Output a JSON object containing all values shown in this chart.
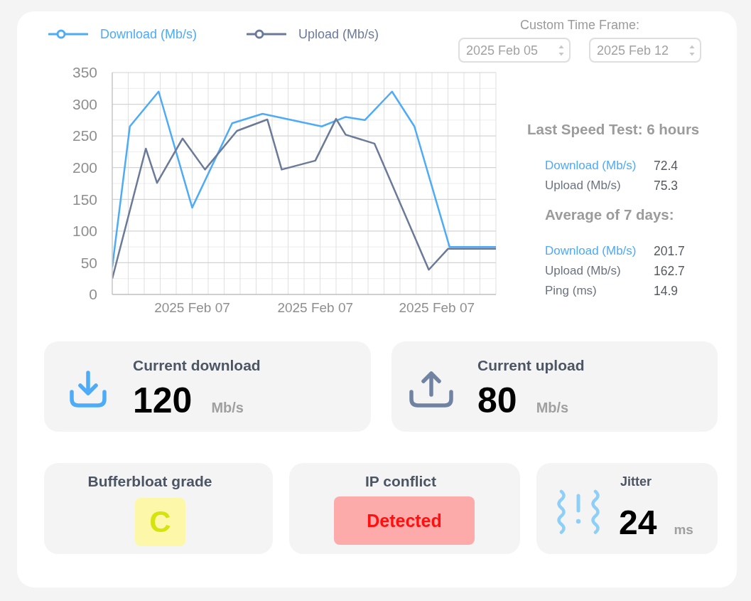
{
  "chart_data": [
    {
      "type": "line",
      "series": [
        {
          "name": "Download (Mb/s)",
          "color": "#4dabf7",
          "x": [
            "2025-02-07T00:00",
            "2025-02-07T01:06",
            "2025-02-07T02:54",
            "2025-02-07T05:00",
            "2025-02-07T07:30",
            "2025-02-07T09:24",
            "2025-02-07T13:06",
            "2025-02-07T14:36",
            "2025-02-07T15:48",
            "2025-02-07T17:30",
            "2025-02-07T18:54",
            "2025-02-07T21:06",
            "2025-02-08T00:00"
          ],
          "values": [
            43,
            265,
            320,
            137,
            270,
            285,
            265,
            280,
            275,
            320,
            265,
            75,
            75
          ]
        },
        {
          "name": "Upload (Mb/s)",
          "color": "#6b7a99",
          "x": [
            "2025-02-07T00:00",
            "2025-02-07T02:06",
            "2025-02-07T02:48",
            "2025-02-07T04:24",
            "2025-02-07T05:48",
            "2025-02-07T07:48",
            "2025-02-07T09:42",
            "2025-02-07T10:36",
            "2025-02-07T12:42",
            "2025-02-07T14:00",
            "2025-02-07T14:36",
            "2025-02-07T16:24",
            "2025-02-07T19:48",
            "2025-02-07T21:00",
            "2025-02-08T00:00"
          ],
          "values": [
            25,
            230,
            176,
            246,
            197,
            258,
            276,
            197,
            211,
            277,
            252,
            238,
            39,
            72,
            72
          ]
        }
      ],
      "xlim": [
        "2025-02-07T00:00",
        "2025-02-08T00:00"
      ],
      "xticks": [
        {
          "value": "2025-02-07T00:00",
          "label": null
        },
        {
          "value": "2025-02-07T01:00",
          "label": null
        },
        {
          "value": "2025-02-07T02:00",
          "label": null
        },
        {
          "value": "2025-02-07T03:00",
          "label": null
        },
        {
          "value": "2025-02-07T04:00",
          "label": null
        },
        {
          "value": "2025-02-07T05:00",
          "label": null
        },
        {
          "value": "2025-02-07T05:00",
          "label": "2025 Feb 07"
        },
        {
          "value": "2025-02-07T06:00",
          "label": null
        },
        {
          "value": "2025-02-07T07:00",
          "label": null
        },
        {
          "value": "2025-02-07T08:00",
          "label": null
        },
        {
          "value": "2025-02-07T09:00",
          "label": null
        },
        {
          "value": "2025-02-07T10:00",
          "label": null
        },
        {
          "value": "2025-02-07T11:00",
          "label": null
        },
        {
          "value": "2025-02-07T12:00",
          "label": null
        },
        {
          "value": "2025-02-07T12:42",
          "label": "2025 Feb 07"
        },
        {
          "value": "2025-02-07T13:00",
          "label": null
        },
        {
          "value": "2025-02-07T14:00",
          "label": null
        },
        {
          "value": "2025-02-07T15:00",
          "label": null
        },
        {
          "value": "2025-02-07T16:00",
          "label": null
        },
        {
          "value": "2025-02-07T17:00",
          "label": null
        },
        {
          "value": "2025-02-07T18:00",
          "label": null
        },
        {
          "value": "2025-02-07T19:00",
          "label": null
        },
        {
          "value": "2025-02-07T20:00",
          "label": null
        },
        {
          "value": "2025-02-07T20:18",
          "label": "2025 Feb 07"
        },
        {
          "value": "2025-02-07T21:00",
          "label": null
        },
        {
          "value": "2025-02-07T22:00",
          "label": null
        },
        {
          "value": "2025-02-07T23:00",
          "label": null
        },
        {
          "value": "2025-02-08T00:00",
          "label": null
        }
      ],
      "ylim": [
        0,
        350
      ],
      "yticks": [
        0,
        {
          "value": 25,
          "label": null
        },
        50,
        {
          "value": 75,
          "label": null
        },
        100,
        {
          "value": 125,
          "label": null
        },
        150,
        {
          "value": 175,
          "label": null
        },
        200,
        {
          "value": 225,
          "label": null
        },
        250,
        {
          "value": 275,
          "label": null
        },
        300,
        {
          "value": 325,
          "label": null
        },
        350
      ],
      "grid": true,
      "legend": "top left",
      "line_style": "solid"
    },
    {
      "type": "other",
      "title": "Custom Time Frame:",
      "annotations": [
        "2025 Feb 05",
        "2025 Feb 12"
      ]
    },
    {
      "type": "other",
      "title": "Last Speed Test: 6 hours",
      "categories": [
        "Download (Mb/s)",
        "Upload (Mb/s)"
      ],
      "values": [
        72.4,
        75.3
      ],
      "colors": [
        "#4dabf7",
        "#6b7280"
      ],
      "data_labels": true
    },
    {
      "type": "other",
      "title": "Average of 7 days:",
      "categories": [
        "Download (Mb/s)",
        "Upload (Mb/s)",
        "Ping (ms)"
      ],
      "values": [
        201.7,
        162.7,
        14.9
      ],
      "colors": [
        "#4dabf7",
        "#6b7280",
        "#6b7280"
      ],
      "data_labels": true
    },
    {
      "type": "other",
      "title": "Current download",
      "values": [
        120
      ],
      "annotations": [
        "Mb/s"
      ],
      "data_labels": true
    },
    {
      "type": "other",
      "title": "Current upload",
      "values": [
        80
      ],
      "annotations": [
        "Mb/s"
      ],
      "data_labels": true
    },
    {
      "type": "other",
      "title": "Bufferbloat grade",
      "annotations": [
        "C"
      ]
    },
    {
      "type": "other",
      "title": "IP conflict",
      "annotations": [
        "Detected"
      ]
    },
    {
      "type": "other",
      "title": "Jitter",
      "values": [
        24
      ],
      "annotations": [
        "ms"
      ],
      "data_labels": true
    }
  ]
}
